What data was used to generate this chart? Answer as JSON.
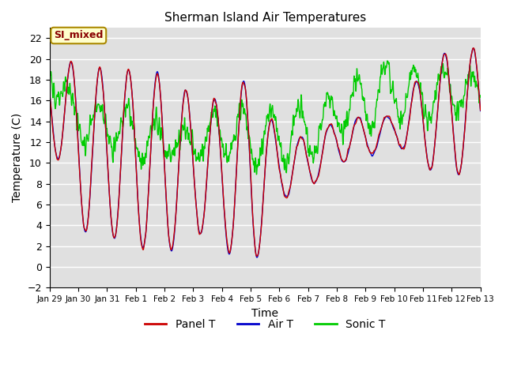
{
  "title": "Sherman Island Air Temperatures",
  "xlabel": "Time",
  "ylabel": "Temperature (C)",
  "annotation": "SI_mixed",
  "ylim": [
    -2,
    23
  ],
  "yticks": [
    -2,
    0,
    2,
    4,
    6,
    8,
    10,
    12,
    14,
    16,
    18,
    20,
    22
  ],
  "xtick_labels": [
    "Jan 29",
    "Jan 30",
    "Jan 31",
    "Feb 1",
    "Feb 2",
    "Feb 3",
    "Feb 4",
    "Feb 5",
    "Feb 6",
    "Feb 7",
    "Feb 8",
    "Feb 9",
    "Feb 10",
    "Feb 11",
    "Feb 12",
    "Feb 13"
  ],
  "colors": {
    "panel": "#cc0000",
    "air": "#0000cc",
    "sonic": "#00cc00",
    "bg": "#e0e0e0",
    "grid": "#ffffff",
    "annotation_bg": "#ffffcc",
    "annotation_border": "#aa8800",
    "annotation_text": "#880000"
  },
  "legend_labels": [
    "Panel T",
    "Air T",
    "Sonic T"
  ],
  "linewidth": 1.0
}
